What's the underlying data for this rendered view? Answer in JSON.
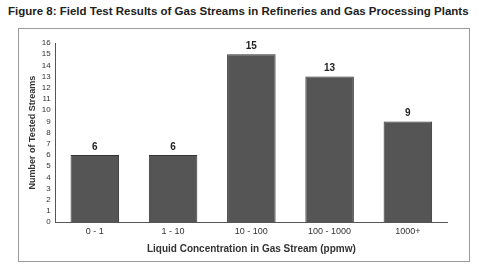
{
  "chart_data": {
    "type": "bar",
    "title": "Figure 8: Field Test Results of Gas Streams in Refineries and Gas Processing Plants",
    "x_label": "Liquid Concentration in Gas Stream (ppmw)",
    "y_label": "Number of Tested Streams",
    "categories": [
      "0 - 1",
      "1 - 10",
      "10 - 100",
      "100 - 1000",
      "1000+"
    ],
    "values": [
      6,
      6,
      15,
      13,
      9
    ],
    "color": "#555555",
    "ylim": [
      0,
      16
    ],
    "yticks": [
      0,
      1,
      2,
      3,
      4,
      5,
      6,
      7,
      8,
      9,
      10,
      11,
      12,
      13,
      14,
      15,
      16
    ],
    "grid": false,
    "data_labels": true
  }
}
